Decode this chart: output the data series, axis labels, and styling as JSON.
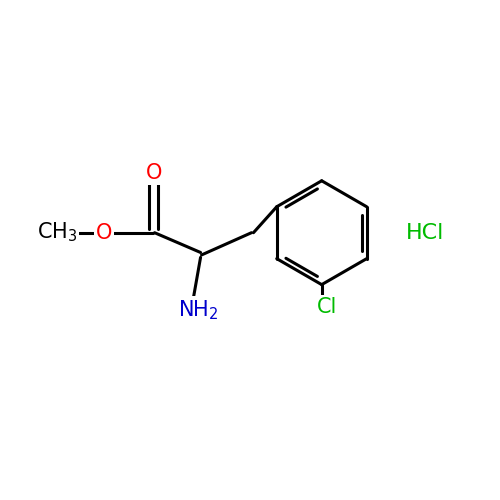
{
  "background_color": "#ffffff",
  "bond_color": "#000000",
  "bond_width": 2.2,
  "atom_colors": {
    "O": "#ff0000",
    "N": "#0000cc",
    "Cl": "#00bb00",
    "HCl": "#00bb00"
  },
  "font_size": 15,
  "figsize": [
    5.0,
    5.0
  ],
  "dpi": 100,
  "xlim": [
    0,
    10
  ],
  "ylim": [
    0,
    10
  ]
}
